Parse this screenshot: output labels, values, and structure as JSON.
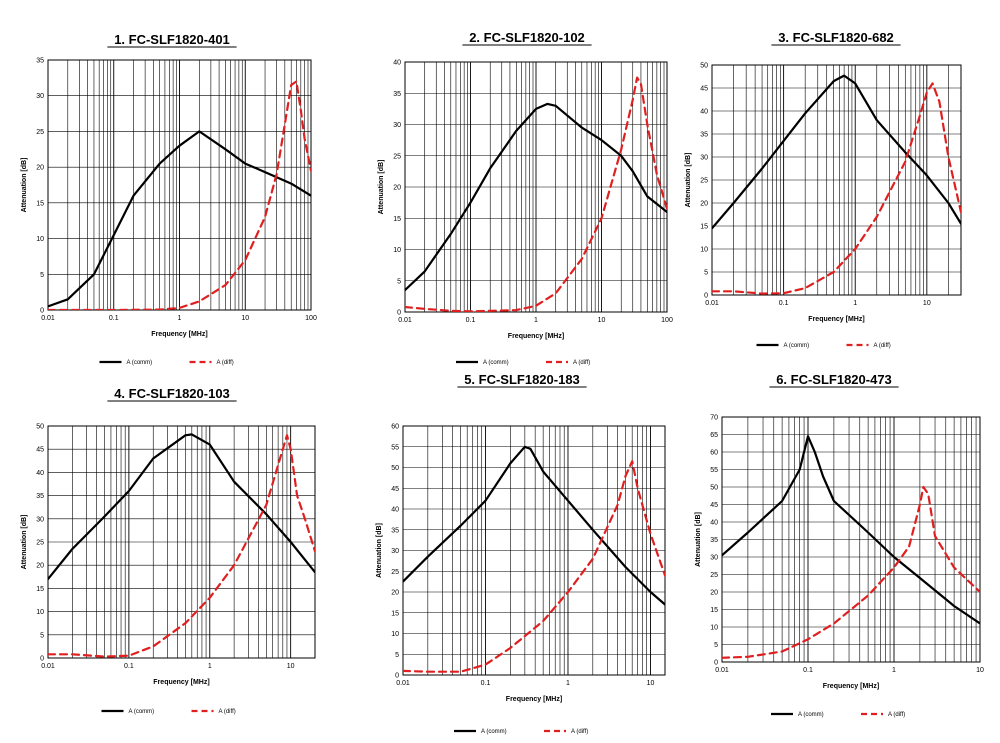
{
  "chart_data": [
    {
      "type": "line",
      "title": "1. FC-SLF1820-401",
      "xlabel": "Frequency [MHz]",
      "ylabel": "Attenuation [dB]",
      "x_scale": "log",
      "xlim": [
        0.01,
        100
      ],
      "ylim": [
        0,
        35
      ],
      "xticks": [
        "0.01",
        "0.1",
        "1",
        "10",
        "100"
      ],
      "yticks": [
        "0",
        "5",
        "10",
        "15",
        "20",
        "25",
        "30",
        "35"
      ],
      "grid": true,
      "legend_position": "bottom",
      "series": [
        {
          "name": "A (comm)",
          "color": "#000000",
          "dash": "solid",
          "x": [
            0.01,
            0.02,
            0.05,
            0.1,
            0.2,
            0.5,
            1,
            2,
            5,
            10,
            20,
            50,
            100
          ],
          "y": [
            0.5,
            1.5,
            5,
            10.5,
            16,
            20.5,
            23,
            25,
            22.5,
            20.5,
            19.3,
            17.7,
            16
          ]
        },
        {
          "name": "A (diff)",
          "color": "#e02020",
          "dash": "dashed",
          "x": [
            0.01,
            0.1,
            0.5,
            1,
            2,
            5,
            10,
            20,
            30,
            40,
            50,
            60,
            70,
            80,
            100
          ],
          "y": [
            0,
            0,
            0.05,
            0.3,
            1.2,
            3.5,
            7,
            13,
            19,
            26,
            31.5,
            32,
            28,
            24,
            19.5
          ]
        }
      ]
    },
    {
      "type": "line",
      "title": "2. FC-SLF1820-102",
      "xlabel": "Frequency [MHz]",
      "ylabel": "Attenuation [dB]",
      "x_scale": "log",
      "xlim": [
        0.01,
        100
      ],
      "ylim": [
        0,
        40
      ],
      "xticks": [
        "0.01",
        "0.1",
        "1",
        "10",
        "100"
      ],
      "yticks": [
        "0",
        "5",
        "10",
        "15",
        "20",
        "25",
        "30",
        "35",
        "40"
      ],
      "grid": true,
      "legend_position": "bottom",
      "series": [
        {
          "name": "A (comm)",
          "color": "#000000",
          "dash": "solid",
          "x": [
            0.01,
            0.02,
            0.05,
            0.1,
            0.2,
            0.5,
            1,
            1.5,
            2,
            5,
            10,
            20,
            30,
            50,
            100
          ],
          "y": [
            3.5,
            6.5,
            12.5,
            17.5,
            23,
            29,
            32.5,
            33.3,
            33,
            29.5,
            27.5,
            25,
            22.5,
            18.5,
            16
          ]
        },
        {
          "name": "A (diff)",
          "color": "#e02020",
          "dash": "dashed",
          "x": [
            0.01,
            0.02,
            0.05,
            0.1,
            0.5,
            1,
            2,
            5,
            10,
            20,
            30,
            35,
            40,
            50,
            70,
            100
          ],
          "y": [
            0.8,
            0.5,
            0.2,
            0.1,
            0.3,
            1,
            3,
            8.5,
            15,
            26,
            34,
            37.5,
            36.5,
            30,
            22,
            16.5
          ]
        }
      ]
    },
    {
      "type": "line",
      "title": "3. FC-SLF1820-682",
      "xlabel": "Frequency [MHz]",
      "ylabel": "Attenuation [dB]",
      "x_scale": "log",
      "xlim": [
        0.01,
        30
      ],
      "ylim": [
        0,
        50
      ],
      "xticks": [
        "0.01",
        "0.1",
        "1",
        "10"
      ],
      "yticks": [
        "0",
        "5",
        "10",
        "15",
        "20",
        "25",
        "30",
        "35",
        "40",
        "45",
        "50"
      ],
      "grid": true,
      "legend_position": "bottom",
      "series": [
        {
          "name": "A (comm)",
          "color": "#000000",
          "dash": "solid",
          "x": [
            0.01,
            0.02,
            0.05,
            0.1,
            0.2,
            0.5,
            0.7,
            1,
            2,
            5,
            10,
            20,
            30
          ],
          "y": [
            14.5,
            20,
            27.5,
            33.5,
            39.5,
            46.5,
            47.7,
            46,
            38,
            31,
            26,
            20,
            15.5
          ]
        },
        {
          "name": "A (diff)",
          "color": "#e02020",
          "dash": "dashed",
          "x": [
            0.01,
            0.02,
            0.05,
            0.1,
            0.2,
            0.5,
            1,
            2,
            5,
            8,
            10,
            12,
            15,
            20,
            30
          ],
          "y": [
            0.8,
            0.8,
            0.3,
            0.4,
            1.5,
            5,
            10,
            17,
            29,
            39,
            44,
            46,
            42,
            30,
            18
          ]
        }
      ]
    },
    {
      "type": "line",
      "title": "4. FC-SLF1820-103",
      "xlabel": "Frequency [MHz]",
      "ylabel": "Attenuation [dB]",
      "x_scale": "log",
      "xlim": [
        0.01,
        20
      ],
      "ylim": [
        0,
        50
      ],
      "xticks": [
        "0.01",
        "0.1",
        "1",
        "10"
      ],
      "yticks": [
        "0",
        "5",
        "10",
        "15",
        "20",
        "25",
        "30",
        "35",
        "40",
        "45",
        "50"
      ],
      "grid": true,
      "legend_position": "bottom",
      "series": [
        {
          "name": "A (comm)",
          "color": "#000000",
          "dash": "solid",
          "x": [
            0.01,
            0.02,
            0.05,
            0.1,
            0.2,
            0.5,
            0.6,
            1,
            2,
            5,
            10,
            20
          ],
          "y": [
            17,
            23.5,
            30.5,
            36,
            43,
            48,
            48.2,
            46,
            38,
            31,
            25,
            18.5
          ]
        },
        {
          "name": "A (diff)",
          "color": "#e02020",
          "dash": "dashed",
          "x": [
            0.01,
            0.02,
            0.05,
            0.1,
            0.2,
            0.5,
            1,
            2,
            5,
            8,
            9,
            10,
            12,
            15,
            20
          ],
          "y": [
            0.8,
            0.8,
            0.3,
            0.5,
            2.5,
            7.5,
            13,
            20,
            33,
            45,
            48,
            45,
            35,
            30,
            23
          ]
        }
      ]
    },
    {
      "type": "line",
      "title": "5. FC-SLF1820-183",
      "xlabel": "Frequency [MHz]",
      "ylabel": "Attenuation [dB]",
      "x_scale": "log",
      "xlim": [
        0.01,
        15
      ],
      "ylim": [
        0,
        60
      ],
      "xticks": [
        "0.01",
        "0.1",
        "1",
        "10"
      ],
      "yticks": [
        "0",
        "5",
        "10",
        "15",
        "20",
        "25",
        "30",
        "35",
        "40",
        "45",
        "50",
        "55",
        "60"
      ],
      "grid": true,
      "legend_position": "bottom",
      "series": [
        {
          "name": "A (comm)",
          "color": "#000000",
          "dash": "solid",
          "x": [
            0.01,
            0.02,
            0.05,
            0.1,
            0.2,
            0.3,
            0.35,
            0.5,
            1,
            2,
            5,
            10,
            15
          ],
          "y": [
            22.5,
            28.5,
            36,
            42,
            51,
            55,
            54.5,
            49,
            42,
            35,
            26,
            20,
            17
          ]
        },
        {
          "name": "A (diff)",
          "color": "#e02020",
          "dash": "dashed",
          "x": [
            0.01,
            0.02,
            0.05,
            0.1,
            0.2,
            0.5,
            1,
            2,
            4,
            5,
            6,
            7,
            10,
            15
          ],
          "y": [
            1,
            0.8,
            0.8,
            2.5,
            6.5,
            13,
            20,
            28,
            41,
            48,
            51.5,
            45,
            34,
            24
          ]
        }
      ]
    },
    {
      "type": "line",
      "title": "6. FC-SLF1820-473",
      "xlabel": "Frequency [MHz]",
      "ylabel": "Attenuation [dB]",
      "x_scale": "log",
      "xlim": [
        0.01,
        10
      ],
      "ylim": [
        0,
        70
      ],
      "xticks": [
        "0.01",
        "0.1",
        "1",
        "10"
      ],
      "yticks": [
        "0",
        "5",
        "10",
        "15",
        "20",
        "25",
        "30",
        "35",
        "40",
        "45",
        "50",
        "55",
        "60",
        "65",
        "70"
      ],
      "grid": true,
      "legend_position": "bottom",
      "series": [
        {
          "name": "A (comm)",
          "color": "#000000",
          "dash": "solid",
          "x": [
            0.01,
            0.02,
            0.05,
            0.08,
            0.1,
            0.12,
            0.15,
            0.2,
            0.5,
            1,
            2,
            5,
            10
          ],
          "y": [
            30.5,
            37,
            46,
            55,
            64.5,
            60,
            53,
            46,
            37,
            30,
            24,
            16,
            11
          ]
        },
        {
          "name": "A (diff)",
          "color": "#e02020",
          "dash": "dashed",
          "x": [
            0.01,
            0.02,
            0.05,
            0.1,
            0.2,
            0.5,
            1,
            1.5,
            2,
            2.2,
            2.5,
            3,
            5,
            10
          ],
          "y": [
            1.2,
            1.5,
            3,
            6.5,
            11,
            19,
            27,
            33,
            45,
            50,
            48,
            36,
            27,
            20
          ]
        }
      ]
    }
  ]
}
